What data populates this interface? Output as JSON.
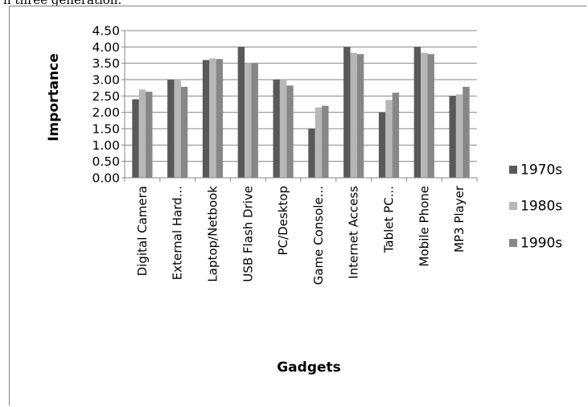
{
  "page": {
    "header_fragment": "n three generation."
  },
  "colors": {
    "series_1970s": "#595959",
    "series_1980s": "#b7b7b7",
    "series_1990s": "#878787",
    "grid": "#868686",
    "axis": "#868686"
  },
  "chart_data": {
    "type": "bar",
    "title": "",
    "xlabel": "Gadgets",
    "ylabel": "Importance",
    "ylim": [
      0,
      4.5
    ],
    "ytick_step": 0.5,
    "ytick_labels": [
      "0.00",
      "0.50",
      "1.00",
      "1.50",
      "2.00",
      "2.50",
      "3.00",
      "3.50",
      "4.00",
      "4.50"
    ],
    "grid": true,
    "legend_position": "right",
    "categories": [
      "Digital Camera",
      "External Hard...",
      "Laptop/Netbook",
      "USB Flash Drive",
      "PC/Desktop",
      "Game Console...",
      "Internet Access",
      "Tablet PC...",
      "Mobile Phone",
      "MP3 Player"
    ],
    "series": [
      {
        "name": "1970s",
        "values": [
          2.4,
          3.0,
          3.6,
          4.0,
          3.0,
          1.5,
          4.0,
          2.0,
          4.0,
          2.5
        ]
      },
      {
        "name": "1980s",
        "values": [
          2.7,
          3.0,
          3.65,
          3.5,
          3.0,
          2.15,
          3.82,
          2.38,
          3.82,
          2.55
        ]
      },
      {
        "name": "1990s",
        "values": [
          2.63,
          2.78,
          3.63,
          3.5,
          2.82,
          2.2,
          3.78,
          2.6,
          3.78,
          2.78
        ]
      }
    ]
  }
}
